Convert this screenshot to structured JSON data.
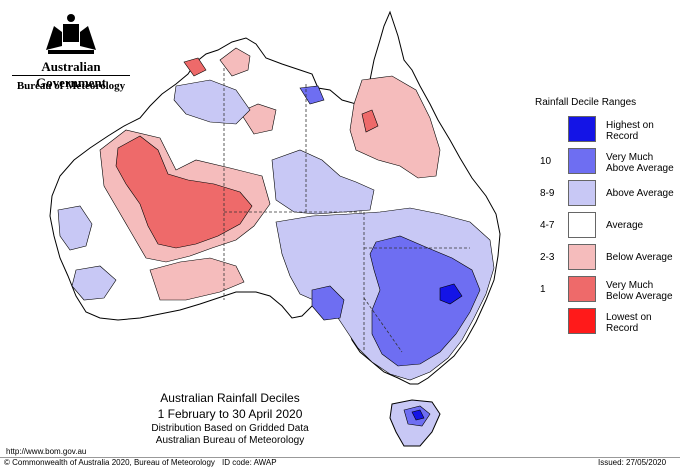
{
  "header": {
    "government": "Australian Government",
    "bureau": "Bureau of Meteorology"
  },
  "legend": {
    "title": "Rainfall Decile Ranges",
    "items": [
      {
        "code": "",
        "label_line1": "Highest on",
        "label_line2": "Record",
        "color": "#1414e6"
      },
      {
        "code": "10",
        "label_line1": "Very Much",
        "label_line2": "Above Average",
        "color": "#6e6ef2"
      },
      {
        "code": "8-9",
        "label_line1": "Above Average",
        "label_line2": "",
        "color": "#c8c8f5"
      },
      {
        "code": "4-7",
        "label_line1": "Average",
        "label_line2": "",
        "color": "#ffffff"
      },
      {
        "code": "2-3",
        "label_line1": "Below Average",
        "label_line2": "",
        "color": "#f5bcbc"
      },
      {
        "code": "1",
        "label_line1": "Very Much",
        "label_line2": "Below Average",
        "color": "#ee6a6a"
      },
      {
        "code": "",
        "label_line1": "Lowest on",
        "label_line2": "Record",
        "color": "#ff1a1a"
      }
    ]
  },
  "map_title": {
    "line1": "Australian Rainfall Deciles",
    "line2": "1 February to 30 April 2020",
    "line3": "Distribution Based on Gridded Data",
    "line4": "Australian Bureau of Meteorology"
  },
  "footer": {
    "url": "http://www.bom.gov.au",
    "copyright": "© Commonwealth of Australia 2020, Bureau of Meteorology",
    "id_code": "ID code: AWAP",
    "issued": "Issued: 27/05/2020"
  }
}
